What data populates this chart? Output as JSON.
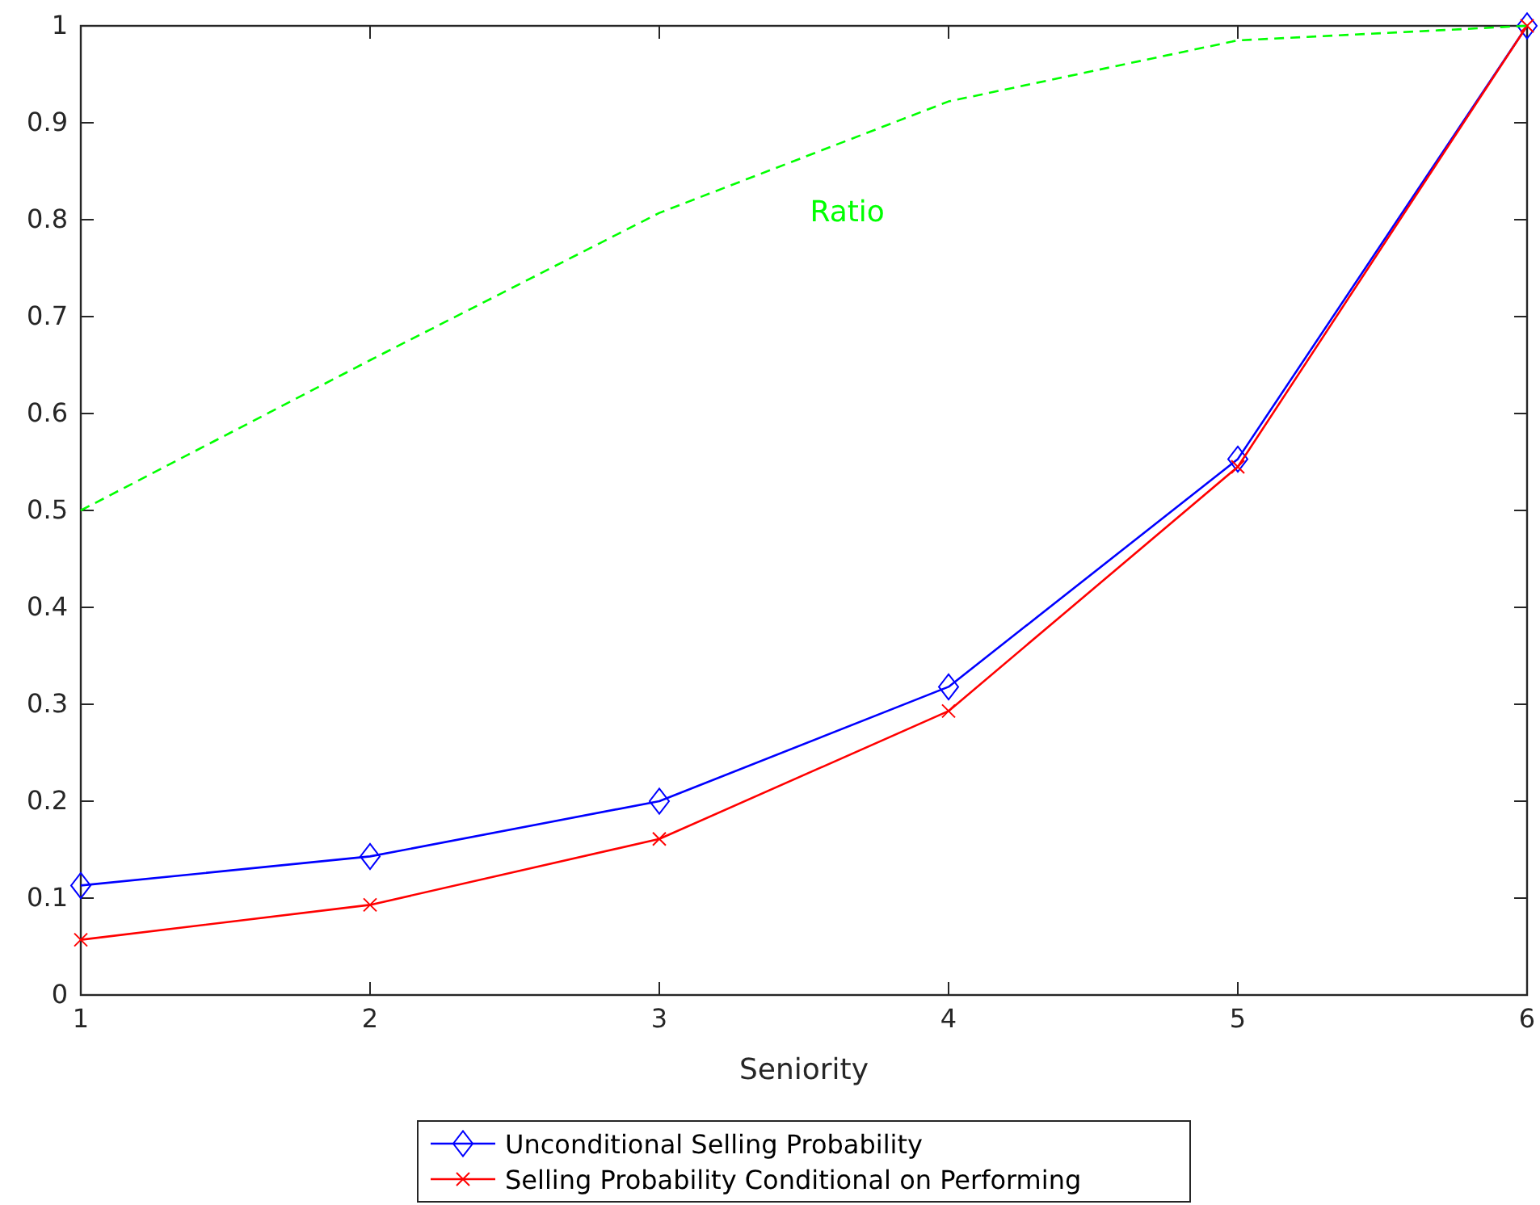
{
  "chart_data": {
    "type": "line",
    "xlabel": "Seniority",
    "x": [
      1,
      2,
      3,
      4,
      5,
      6
    ],
    "xlim": [
      1,
      6
    ],
    "xticks": [
      1,
      2,
      3,
      4,
      5,
      6
    ],
    "ylim": [
      0,
      1
    ],
    "yticks": [
      0,
      0.1,
      0.2,
      0.3,
      0.4,
      0.5,
      0.6,
      0.7,
      0.8,
      0.9,
      1
    ],
    "series": [
      {
        "name": "Unconditional Selling Probability",
        "color": "#0000ff",
        "marker": "diamond",
        "line_style": "solid",
        "values": [
          0.113,
          0.143,
          0.2,
          0.318,
          0.553,
          1
        ]
      },
      {
        "name": "Selling Probability Conditional on Performing",
        "color": "#ff0000",
        "marker": "cross",
        "line_style": "solid",
        "values": [
          0.057,
          0.093,
          0.161,
          0.293,
          0.545,
          1
        ]
      },
      {
        "name": "Ratio",
        "color": "#00ff00",
        "marker": "none",
        "line_style": "dashed",
        "values": [
          0.5,
          0.655,
          0.807,
          0.922,
          0.985,
          1
        ]
      }
    ],
    "grid": false,
    "legend": "bottom"
  }
}
